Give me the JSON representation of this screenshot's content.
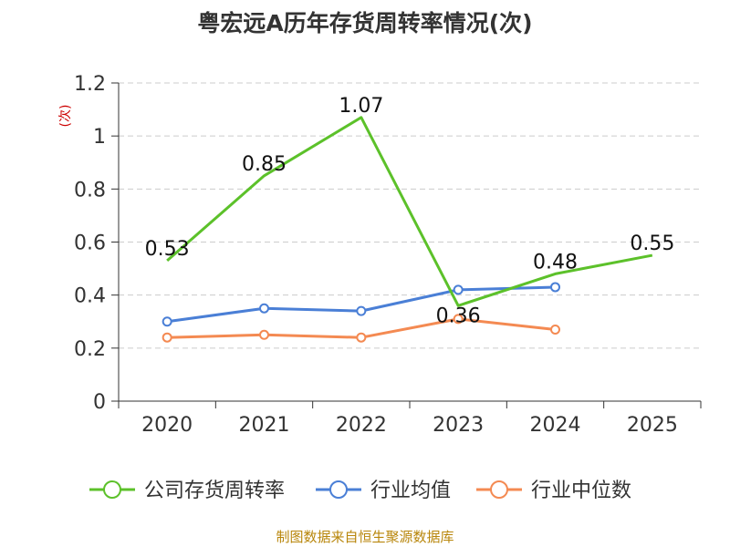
{
  "chart_data": {
    "type": "line",
    "title": "粤宏远A历年存货周转率情况(次)",
    "ylabel": "(次)",
    "xlabel": "",
    "categories": [
      "2020",
      "2021",
      "2022",
      "2023",
      "2024",
      "2025"
    ],
    "yticks": [
      "0",
      "0.2",
      "0.4",
      "0.6",
      "0.8",
      "1",
      "1.2"
    ],
    "ylim": [
      0,
      1.2
    ],
    "grid": true,
    "legend_position": "bottom",
    "series": [
      {
        "name": "公司存货周转率",
        "color": "#5cc12a",
        "values": [
          0.53,
          0.85,
          1.07,
          0.36,
          0.48,
          0.55
        ],
        "labels": [
          "0.53",
          "0.85",
          "1.07",
          "0.36",
          "0.48",
          "0.55"
        ]
      },
      {
        "name": "行业均值",
        "color": "#4a7fd6",
        "values": [
          0.3,
          0.35,
          0.34,
          0.42,
          0.43,
          null
        ]
      },
      {
        "name": "行业中位数",
        "color": "#f48a52",
        "values": [
          0.24,
          0.25,
          0.24,
          0.31,
          0.27,
          null
        ]
      }
    ],
    "source": "制图数据来自恒生聚源数据库"
  }
}
